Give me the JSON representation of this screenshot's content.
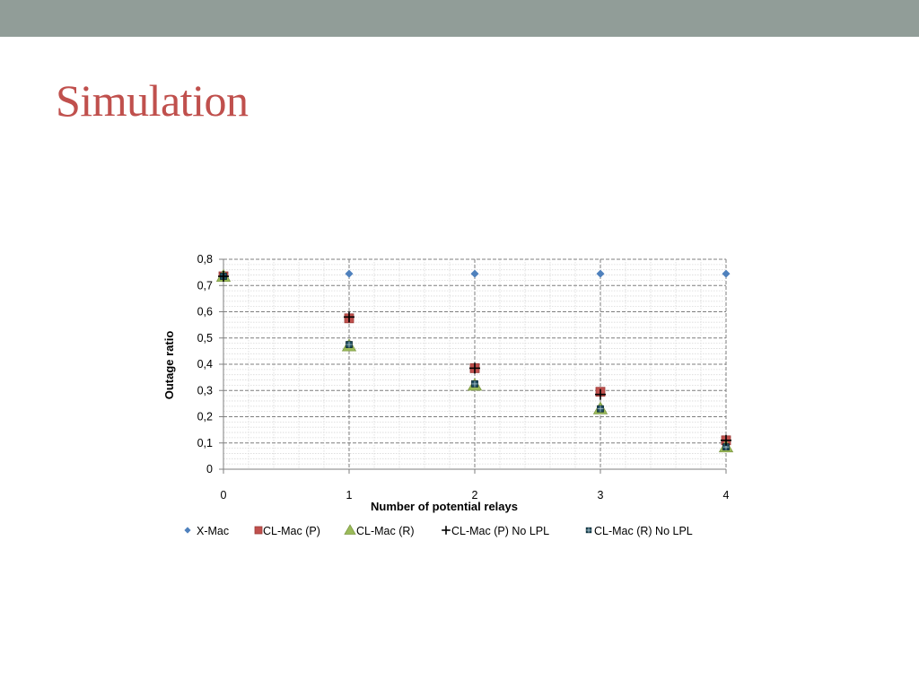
{
  "slide": {
    "title": "Simulation"
  },
  "colors": {
    "top_bar": "#919d98",
    "title": "#c0504d",
    "xmac": "#4f81bd",
    "clmac_p": "#c0504d",
    "clmac_r": "#9bbb59",
    "nolpl_p": "#000000",
    "nolpl_r": "#1f4e5f"
  },
  "chart_data": {
    "type": "scatter",
    "xlabel": "Number of potential relays",
    "ylabel": "Outage ratio",
    "x_ticks": [
      "0",
      "1",
      "2",
      "3",
      "4"
    ],
    "y_ticks": [
      "0",
      "0,1",
      "0,2",
      "0,3",
      "0,4",
      "0,5",
      "0,6",
      "0,7",
      "0,8"
    ],
    "xlim": [
      0,
      4
    ],
    "ylim": [
      0,
      0.8
    ],
    "grid": true,
    "legend_position": "bottom",
    "series": [
      {
        "name": "X-Mac",
        "marker": "diamond",
        "color": "#4f81bd",
        "points": [
          [
            0,
            0.745
          ],
          [
            1,
            0.745
          ],
          [
            2,
            0.745
          ],
          [
            3,
            0.745
          ],
          [
            4,
            0.745
          ]
        ]
      },
      {
        "name": "CL-Mac (P)",
        "marker": "square",
        "color": "#c0504d",
        "points": [
          [
            0,
            0.735
          ],
          [
            1,
            0.575
          ],
          [
            2,
            0.385
          ],
          [
            3,
            0.295
          ],
          [
            4,
            0.11
          ]
        ]
      },
      {
        "name": "CL-Mac (R)",
        "marker": "triangle",
        "color": "#9bbb59",
        "points": [
          [
            0,
            0.735
          ],
          [
            1,
            0.47
          ],
          [
            2,
            0.32
          ],
          [
            3,
            0.23
          ],
          [
            4,
            0.085
          ]
        ]
      },
      {
        "name": "CL-Mac (P) No  LPL",
        "marker": "plus",
        "color": "#000000",
        "points": [
          [
            0,
            0.735
          ],
          [
            1,
            0.58
          ],
          [
            2,
            0.385
          ],
          [
            3,
            0.285
          ],
          [
            4,
            0.11
          ]
        ]
      },
      {
        "name": "CL-Mac (R)  No LPL",
        "marker": "boxdot",
        "color": "#1f4e5f",
        "points": [
          [
            0,
            0.735
          ],
          [
            1,
            0.475
          ],
          [
            2,
            0.325
          ],
          [
            3,
            0.23
          ],
          [
            4,
            0.085
          ]
        ]
      }
    ]
  }
}
